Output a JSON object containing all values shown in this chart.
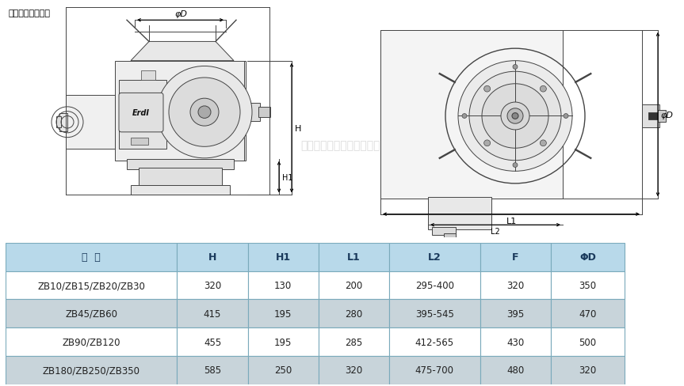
{
  "title": "外形及外形尺寸表",
  "table_headers": [
    "型  号",
    "H",
    "H1",
    "L1",
    "L2",
    "F",
    "ΦD"
  ],
  "table_rows": [
    [
      "ZB10/ZB15/ZB20/ZB30",
      "320",
      "130",
      "200",
      "295-400",
      "320",
      "350"
    ],
    [
      "ZB45/ZB60",
      "415",
      "195",
      "280",
      "395-545",
      "395",
      "470"
    ],
    [
      "ZB90/ZB120",
      "455",
      "195",
      "285",
      "412-565",
      "430",
      "500"
    ],
    [
      "ZB180/ZB250/ZB350",
      "585",
      "250",
      "320",
      "475-700",
      "480",
      "320"
    ]
  ],
  "header_bg": "#b8d9ea",
  "row_bg_even": "#ffffff",
  "row_bg_odd": "#c8d4da",
  "border_color": "#7aaabb",
  "header_text_color": "#1a3a5c",
  "row_text_color": "#222222",
  "fig_bg": "#ffffff",
  "watermark": "上海湖泉阀门集团有限公司",
  "lc": "#444444",
  "lw": 0.7
}
